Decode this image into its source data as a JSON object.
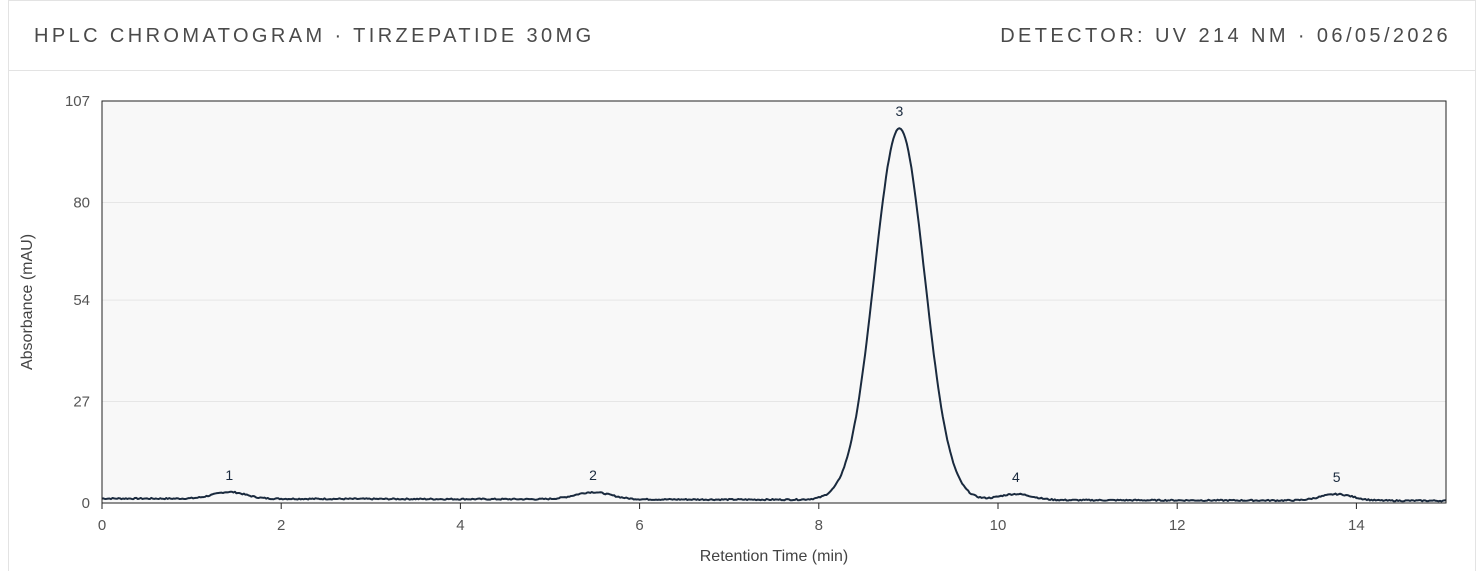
{
  "header": {
    "title": "HPLC CHROMATOGRAM · TIRZEPATIDE 30MG",
    "detector": "DETECTOR: UV 214 NM · 06/05/2026"
  },
  "chart_data": {
    "type": "line",
    "title": "HPLC CHROMATOGRAM · TIRZEPATIDE 30MG",
    "xlabel": "Retention Time (min)",
    "ylabel": "Absorbance (mAU)",
    "xlim": [
      0,
      15
    ],
    "ylim": [
      0,
      107
    ],
    "x_ticks": [
      "0",
      "2",
      "4",
      "6",
      "8",
      "10",
      "12",
      "14"
    ],
    "y_ticks": [
      "0",
      "27",
      "54",
      "80",
      "107"
    ],
    "grid": true,
    "line_color": "#1a2a3e",
    "plot_background": "#f8f8f8",
    "baseline": {
      "start": 1.2,
      "end": 0.6
    },
    "peaks": [
      {
        "label": "1",
        "rt": 1.42,
        "height": 1.8,
        "width": 0.18
      },
      {
        "label": "2",
        "rt": 5.48,
        "height": 1.9,
        "width": 0.2
      },
      {
        "label": "3",
        "rt": 8.9,
        "height": 99.0,
        "width": 0.28
      },
      {
        "label": "4",
        "rt": 10.2,
        "height": 1.6,
        "width": 0.18
      },
      {
        "label": "5",
        "rt": 13.78,
        "height": 1.7,
        "width": 0.18
      }
    ]
  }
}
